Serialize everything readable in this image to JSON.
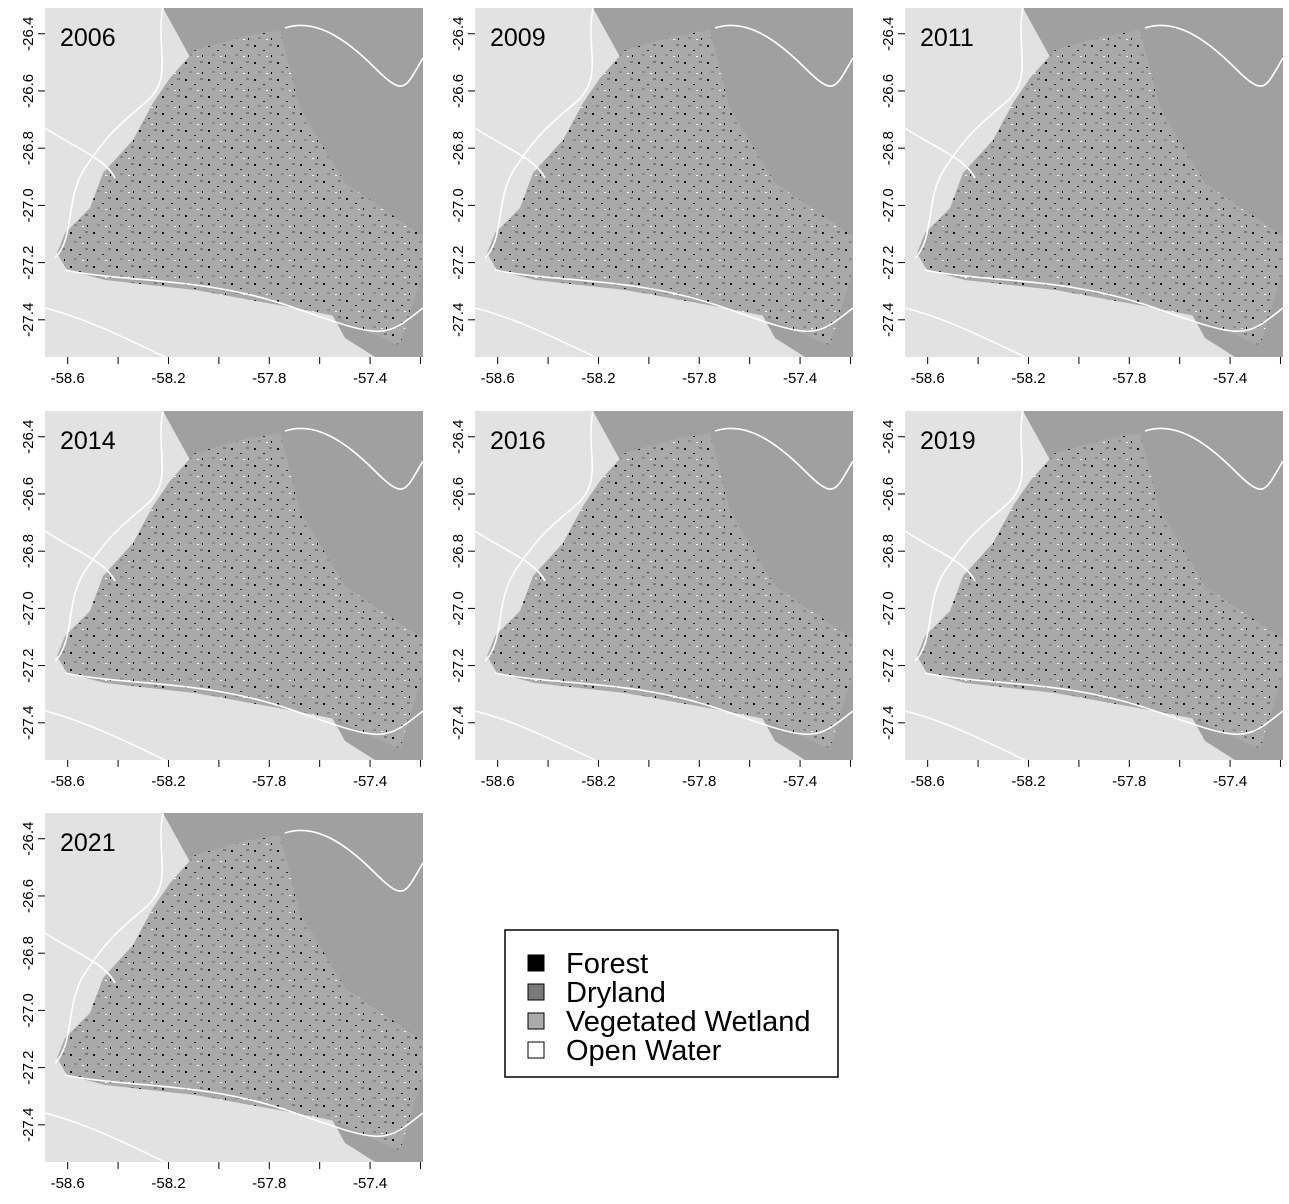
{
  "panels": [
    {
      "title": "2006"
    },
    {
      "title": "2009"
    },
    {
      "title": "2011"
    },
    {
      "title": "2014"
    },
    {
      "title": "2016"
    },
    {
      "title": "2019"
    },
    {
      "title": "2021"
    }
  ],
  "axes": {
    "xlim": [
      -58.69,
      -57.19
    ],
    "ylim": [
      -27.53,
      -26.31
    ],
    "xticks": [
      -58.6,
      -58.2,
      -57.8,
      -57.4
    ],
    "xticks_unlabeled": [
      -58.4,
      -58.0,
      -57.6,
      -57.2
    ],
    "yticks": [
      -26.4,
      -26.6,
      -26.8,
      {
        "value": -27,
        "label": "-27.0"
      },
      -27.2,
      -27.4
    ]
  },
  "legend": [
    {
      "label": "Forest",
      "color": "#000000"
    },
    {
      "label": "Dryland",
      "color": "#7a7a7a"
    },
    {
      "label": "Vegetated Wetland",
      "color": "#ababab"
    },
    {
      "label": "Open Water",
      "color": "#ffffff"
    }
  ]
}
